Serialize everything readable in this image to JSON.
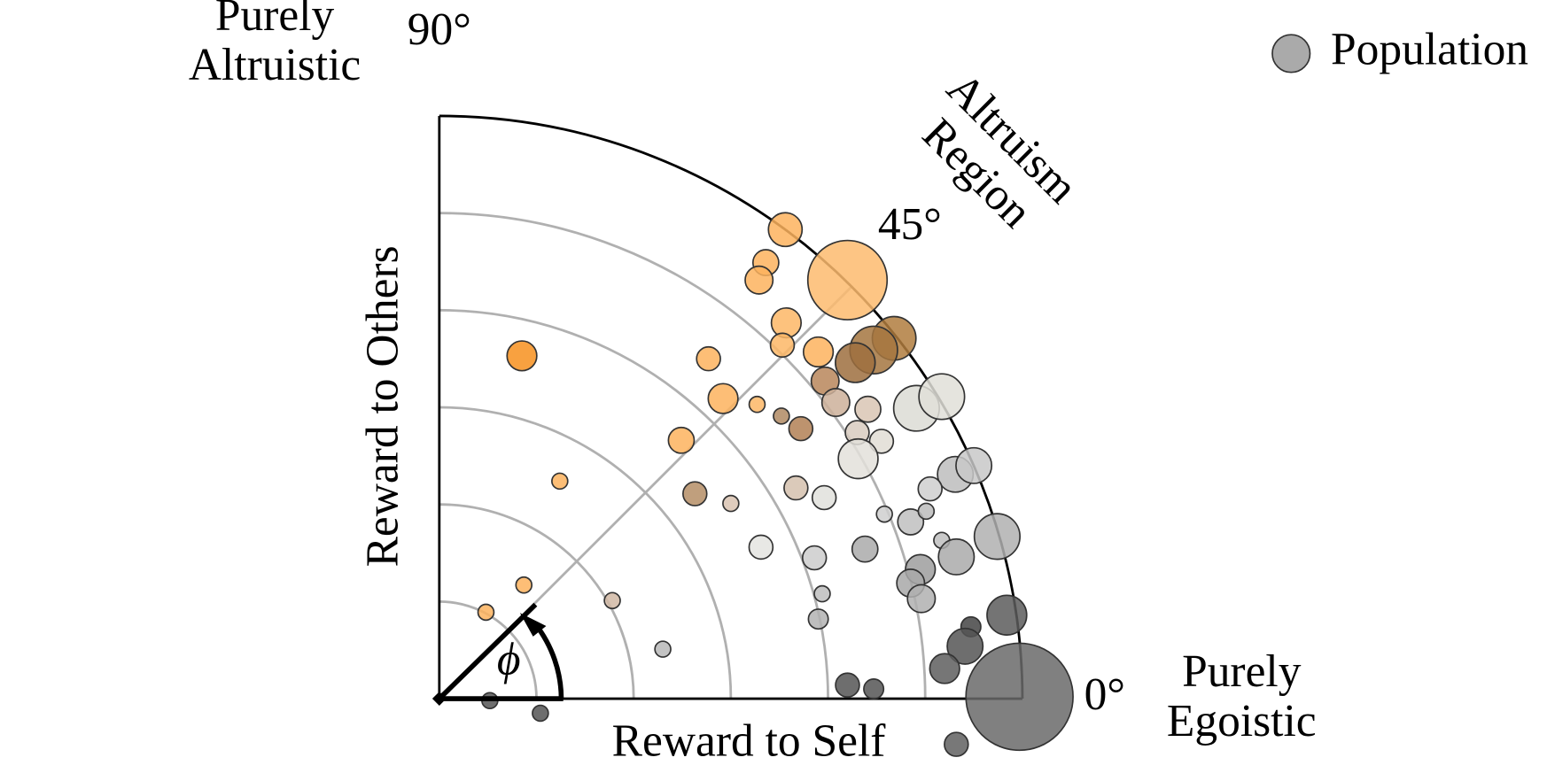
{
  "chart_data": {
    "type": "polar-quadrant-scatter",
    "x_label": "Reward to Self",
    "y_label": "Reward to Others",
    "top_left_label": [
      "Purely",
      "Altruistic"
    ],
    "bottom_right_label": [
      "Purely",
      "Egoistic"
    ],
    "region_label": [
      "Altruism",
      "Region"
    ],
    "annotation": "ϕ",
    "xlim": [
      0,
      6
    ],
    "ylim": [
      0,
      6
    ],
    "rgrid": [
      1,
      2,
      3,
      4,
      5
    ],
    "angle_ticks": [
      {
        "value": 0,
        "label": "0°"
      },
      {
        "value": 45,
        "label": "45°"
      },
      {
        "value": 90,
        "label": "90°"
      }
    ],
    "legend": "upper right",
    "series": [
      {
        "name": "Population",
        "color": "#aaaaaa",
        "x": [
          3.56,
          4.2,
          3.36,
          3.29,
          3.57,
          3.53,
          3.9,
          2.77,
          0.85,
          2.92,
          3.27,
          2.49,
          1.24,
          0.87,
          0.48,
          4.68,
          4.47,
          4.28,
          3.97,
          4.08,
          4.41,
          3.52,
          3.72,
          4.3,
          4.55,
          4.31,
          4.91,
          5.17,
          2.63,
          3.0,
          3.67,
          3.96,
          1.78,
          3.31,
          5.31,
          5.5,
          5.05,
          4.58,
          4.85,
          5.01,
          5.74,
          5.17,
          5.32,
          3.86,
          4.38,
          4.95,
          4.85,
          4.96,
          3.94,
          3.9,
          2.3,
          5.84,
          5.47,
          5.41,
          5.2,
          5.97,
          4.2,
          4.47,
          5.32,
          0.52,
          1.04
        ],
        "y": [
          4.83,
          4.31,
          4.49,
          4.31,
          3.87,
          3.64,
          3.57,
          3.5,
          3.53,
          3.09,
          3.03,
          2.66,
          2.24,
          1.17,
          0.89,
          3.71,
          3.59,
          3.46,
          3.27,
          3.05,
          2.98,
          2.91,
          2.78,
          2.74,
          2.65,
          2.47,
          2.99,
          3.11,
          2.11,
          2.01,
          2.17,
          2.07,
          1.01,
          1.56,
          2.31,
          2.4,
          2.16,
          1.9,
          1.82,
          1.93,
          1.67,
          1.63,
          1.46,
          1.45,
          1.54,
          1.33,
          1.19,
          1.03,
          1.08,
          0.82,
          0.51,
          0.86,
          0.74,
          0.54,
          0.31,
          0.02,
          0.14,
          0.1,
          -0.47,
          -0.02,
          -0.15
        ],
        "sizes": [
          17,
          40,
          13,
          14,
          15,
          12,
          15,
          12,
          15,
          15,
          8,
          13,
          8,
          8,
          8,
          22,
          24,
          20,
          14,
          14,
          13,
          8,
          12,
          12,
          12,
          20,
          23,
          23,
          12,
          8,
          12,
          12,
          8,
          12,
          18,
          18,
          12,
          8,
          13,
          8,
          23,
          8,
          18,
          12,
          13,
          15,
          14,
          14,
          8,
          10,
          8,
          20,
          10,
          18,
          15,
          54,
          12,
          10,
          12,
          8,
          8
        ],
        "colors": [
          "#fdb35e",
          "#fdbb6e",
          "#fdb35e",
          "#fdb35e",
          "#fdb766",
          "#fdb766",
          "#fdb35e",
          "#fdb35e",
          "#f7901e",
          "#fdb35e",
          "#fdb766",
          "#fdb35e",
          "#fdb35e",
          "#fdb35e",
          "#fdb35e",
          "#b07c3e",
          "#a57540",
          "#9e6f3e",
          "#b8865a",
          "#cdb09a",
          "#d9c5b4",
          "#b08a63",
          "#b28055",
          "#d8cbc0",
          "#e0ddd5",
          "#e3e1da",
          "#dcdcd5",
          "#e0dfd8",
          "#b58e66",
          "#d9c3b1",
          "#d5c1ae",
          "#e0e0dc",
          "#d1b9a4",
          "#e4e4e0",
          "#bdbdbd",
          "#c8c8c8",
          "#cfcfcf",
          "#cfcfcf",
          "#bfbfbf",
          "#bcbcbc",
          "#b0b0b0",
          "#c0c0c0",
          "#aaaaaa",
          "#cccccc",
          "#aaaaaa",
          "#9e9e9e",
          "#a8a8a8",
          "#b0b0b0",
          "#bdbdbd",
          "#b3b3b3",
          "#b8b8b8",
          "#5c5c5c",
          "#444444",
          "#555555",
          "#5e5e5e",
          "#6a6a6a",
          "#555555",
          "#555555",
          "#606060",
          "#555555",
          "#555555"
        ]
      }
    ]
  }
}
